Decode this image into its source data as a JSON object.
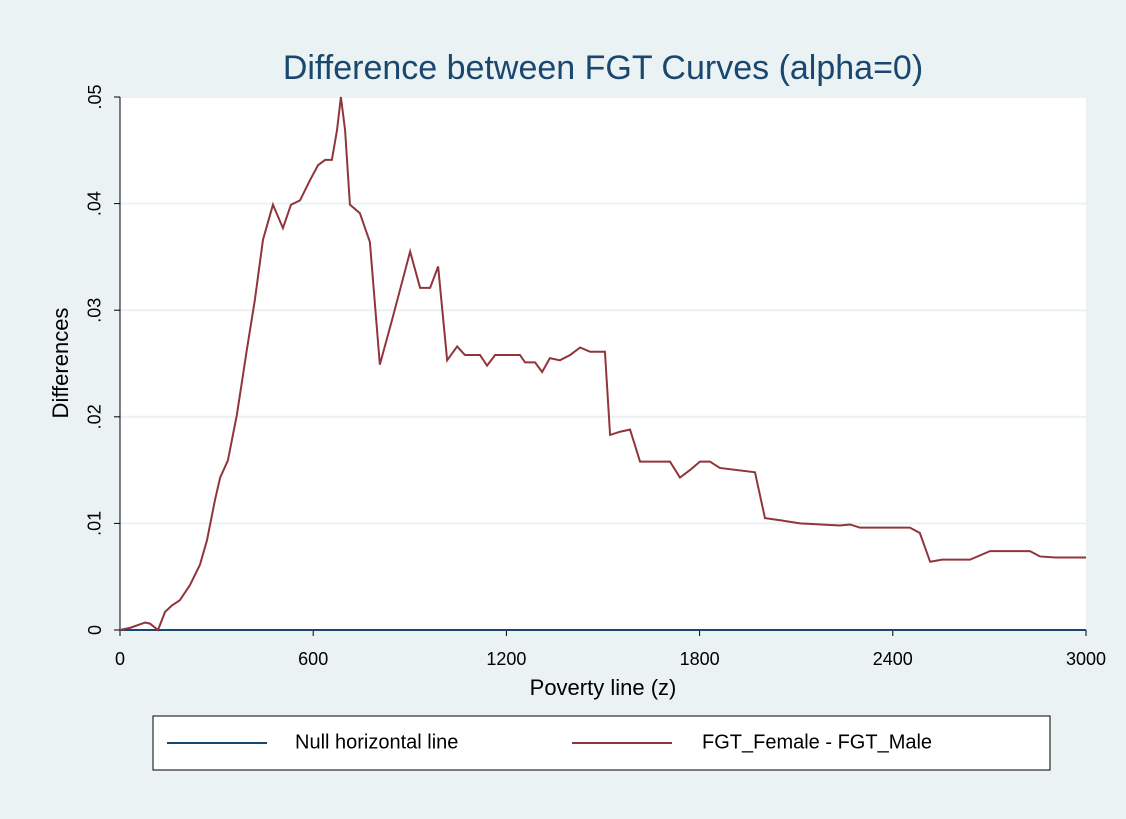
{
  "chart_data": {
    "type": "line",
    "title": "Difference between FGT Curves (alpha=0)",
    "x_label": "Poverty line (z)",
    "y_label": "Differences",
    "xlim": [
      0,
      3000
    ],
    "xticks": [
      0,
      600,
      1200,
      1800,
      2400,
      3000
    ],
    "ylim": [
      0,
      0.05
    ],
    "yticks": [
      0,
      {
        "value": 0.01,
        "label": ".01"
      },
      {
        "value": 0.02,
        "label": ".02"
      },
      {
        "value": 0.03,
        "label": ".03"
      },
      {
        "value": 0.04,
        "label": ".04"
      },
      {
        "value": 0.05,
        "label": ".05"
      }
    ],
    "grid": true,
    "legend": "bottom",
    "series": [
      {
        "name": "Null horizontal line",
        "color": "#1a476f",
        "x": [
          0,
          3000
        ],
        "values": [
          0,
          0
        ]
      },
      {
        "name": "FGT_Female - FGT_Male",
        "color": "#90353b",
        "x": [
          0,
          31,
          78,
          93,
          118,
          140,
          161,
          186,
          217,
          248,
          270,
          295,
          311,
          335,
          363,
          394,
          419,
          444,
          475,
          506,
          531,
          559,
          590,
          615,
          637,
          658,
          674,
          686,
          699,
          714,
          745,
          776,
          807,
          845,
          901,
          932,
          963,
          988,
          1016,
          1047,
          1071,
          1118,
          1140,
          1165,
          1242,
          1258,
          1289,
          1311,
          1335,
          1366,
          1398,
          1429,
          1460,
          1506,
          1522,
          1553,
          1584,
          1615,
          1708,
          1739,
          1770,
          1801,
          1832,
          1863,
          1972,
          2003,
          2050,
          2112,
          2236,
          2267,
          2298,
          2453,
          2484,
          2516,
          2553,
          2593,
          2640,
          2702,
          2826,
          2857,
          2904,
          3000
        ],
        "values": [
          0,
          0.0002,
          0.0007,
          0.0006,
          0,
          0.0017,
          0.0023,
          0.0028,
          0.0042,
          0.0061,
          0.0084,
          0.0122,
          0.0143,
          0.0159,
          0.0202,
          0.0263,
          0.031,
          0.0366,
          0.0399,
          0.0377,
          0.0399,
          0.0403,
          0.0422,
          0.0436,
          0.0441,
          0.0441,
          0.0469,
          0.05,
          0.0469,
          0.0399,
          0.0391,
          0.0364,
          0.0249,
          0.0291,
          0.0355,
          0.0321,
          0.0321,
          0.0341,
          0.0253,
          0.0266,
          0.0258,
          0.0258,
          0.0248,
          0.0258,
          0.0258,
          0.0251,
          0.0251,
          0.0242,
          0.0255,
          0.0253,
          0.0258,
          0.0265,
          0.0261,
          0.0261,
          0.0183,
          0.0186,
          0.0188,
          0.0158,
          0.0158,
          0.0143,
          0.015,
          0.0158,
          0.0158,
          0.0152,
          0.0148,
          0.0105,
          0.0103,
          0.01,
          0.0098,
          0.0099,
          0.0096,
          0.0096,
          0.0091,
          0.0064,
          0.0066,
          0.0066,
          0.0066,
          0.0074,
          0.0074,
          0.0069,
          0.0068,
          0.0068
        ]
      }
    ]
  }
}
